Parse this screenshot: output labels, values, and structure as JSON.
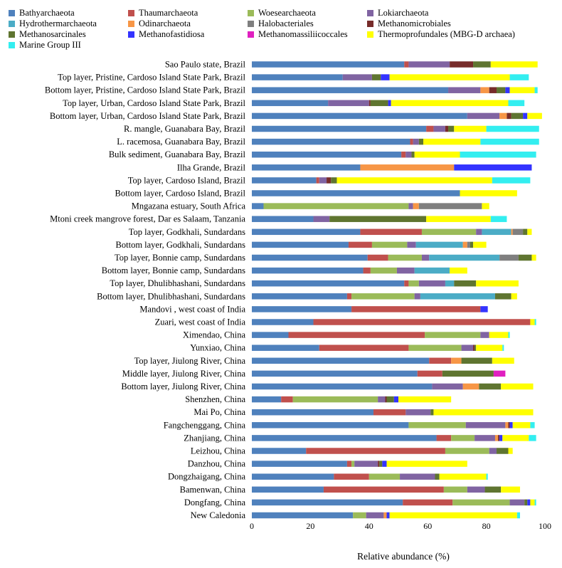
{
  "chart_data": {
    "type": "bar",
    "orientation": "horizontal",
    "stacked": true,
    "xlabel": "Relative abundance (%)",
    "ylabel": "",
    "xlim": [
      0,
      100
    ],
    "xticks": [
      "0",
      "20",
      "40",
      "60",
      "80",
      "100"
    ],
    "grid": false,
    "legend_position": "top",
    "categories": [
      "Sao Paulo state, Brazil",
      "Top layer, Pristine, Cardoso Island State Park, Brazil",
      "Bottom layer, Pristine, Cardoso Island State Park, Brazil",
      "Top layer, Urban, Cardoso Island State Park, Brazil",
      "Bottom layer, Urban, Cardoso Island State Park, Brazil",
      "R. mangle, Guanabara Bay, Brazil",
      "L. racemosa, Guanabara Bay, Brazil",
      "Bulk sediment, Guanabara Bay, Brazil",
      "Ilha Grande, Brazil",
      "Top layer, Cardoso Island, Brazil",
      "Bottom layer, Cardoso Island, Brazil",
      "Mngazana estuary, South Africa",
      "Mtoni creek mangrove forest, Dar es Salaam, Tanzania",
      "Top layer, Godkhali, Sundardans",
      "Bottom layer, Godkhali, Sundardans",
      "Top layer, Bonnie camp, Sundardans",
      "Bottom layer, Bonnie camp, Sundardans",
      "Top layer, Dhulibhashani, Sundardans",
      "Bottom layer, Dhulibhashani, Sundardans",
      "Mandovi , west coast of India",
      "Zuari, west coast of India",
      "Ximendao, China",
      "Yunxiao, China",
      "Top layer, Jiulong River, China",
      "Middle layer, Jiulong River, China",
      "Bottom layer, Jiulong River, China",
      "Shenzhen, China",
      "Mai Po, China",
      "Fangchenggang, China",
      "Zhanjiang, China",
      "Leizhou, China",
      "Danzhou, China",
      "Dongzhaigang, China",
      "Bamenwan, China",
      "Dongfang, China",
      "New Caledonia"
    ],
    "series": [
      {
        "name": "Bathyarchaeota",
        "color": "#4F81BD",
        "values": [
          52,
          31,
          67,
          26,
          73.5,
          59.5,
          54,
          51,
          37,
          22,
          71,
          4,
          21,
          37,
          33,
          39.5,
          38,
          52,
          32.5,
          34,
          21,
          12.5,
          23,
          60.5,
          56.5,
          61.5,
          10,
          41.5,
          53.5,
          63,
          18.5,
          32.5,
          28,
          24.5,
          51.5,
          34.5
        ]
      },
      {
        "name": "Thaumarchaeota",
        "color": "#C0504D",
        "values": [
          1.5,
          0,
          0,
          0,
          0,
          2.5,
          1,
          1.5,
          0,
          1,
          0,
          0,
          0,
          21,
          8,
          7,
          2.5,
          1.5,
          1.5,
          44,
          74,
          46.5,
          30.5,
          7.5,
          8.5,
          0,
          4,
          11,
          0,
          5,
          47.5,
          1.5,
          12,
          41,
          17,
          0
        ]
      },
      {
        "name": "Woesearchaeota",
        "color": "#9BBB59",
        "values": [
          0,
          0,
          0,
          0,
          0,
          0,
          0,
          0,
          0,
          0,
          0,
          49.5,
          0,
          18.5,
          12,
          11.5,
          9,
          3.5,
          21.5,
          0,
          0,
          19,
          18,
          0,
          0,
          0,
          29,
          0,
          19.5,
          8,
          15,
          1,
          10.5,
          8,
          19.5,
          4.5
        ]
      },
      {
        "name": "Lokiarchaeota",
        "color": "#8064A2",
        "values": [
          14,
          10,
          11,
          14,
          11,
          4,
          2,
          2,
          0,
          2.5,
          0,
          1.5,
          5.5,
          2,
          3,
          2.5,
          6,
          9,
          2,
          0,
          0,
          3,
          4,
          0,
          0,
          10.5,
          2.5,
          8.5,
          13.5,
          7,
          2.5,
          8,
          12,
          6,
          5,
          6
        ]
      },
      {
        "name": "Hydrothermarchaeota",
        "color": "#4BACC6",
        "values": [
          0,
          0,
          0,
          0,
          0,
          0,
          0,
          0,
          0,
          0,
          0,
          0,
          0,
          10,
          16,
          24,
          12,
          3,
          25.5,
          0,
          0,
          0,
          0,
          0,
          0,
          0,
          0,
          0,
          0,
          0,
          0,
          0,
          0,
          0,
          0,
          0
        ]
      },
      {
        "name": "Odinarchaeota",
        "color": "#F79646",
        "values": [
          0,
          0,
          3,
          0,
          2.5,
          0,
          0,
          0,
          32,
          0,
          0,
          2,
          0,
          0.5,
          1.5,
          0,
          0,
          0,
          0,
          0,
          0,
          0,
          0,
          3.5,
          0,
          5.5,
          0,
          0,
          1,
          1,
          0,
          0,
          0,
          0,
          0,
          1
        ]
      },
      {
        "name": "Halobacteriales",
        "color": "#7F7F7F",
        "values": [
          0,
          0,
          0,
          0,
          0,
          0,
          0,
          0,
          0,
          0,
          0,
          21.5,
          0,
          3.5,
          1,
          6.5,
          0,
          0,
          0,
          0,
          0,
          0,
          0,
          0,
          0,
          0,
          0,
          0,
          0,
          0,
          0,
          0,
          0,
          0,
          0,
          0
        ]
      },
      {
        "name": "Methanomicrobiales",
        "color": "#772C2A",
        "values": [
          8,
          0,
          2.5,
          0.5,
          1.5,
          1,
          0,
          0,
          0,
          1.5,
          0,
          0,
          0,
          0,
          0,
          0,
          0,
          0,
          0,
          0,
          0,
          0,
          0.5,
          0,
          0,
          0,
          0.5,
          0,
          0.5,
          0.5,
          0,
          0.5,
          0,
          0,
          0,
          0
        ]
      },
      {
        "name": "Methanosarcinales",
        "color": "#5F7530",
        "values": [
          6,
          3,
          3,
          6,
          4,
          2,
          1.5,
          1,
          0,
          2,
          0,
          0,
          33,
          1.5,
          1,
          4.5,
          0,
          7.5,
          5.5,
          0,
          0,
          0,
          0.5,
          10.5,
          17.5,
          7.5,
          2.5,
          1,
          0,
          0,
          4,
          1,
          1.5,
          5.5,
          1,
          0
        ]
      },
      {
        "name": "Methanofastidiosa",
        "color": "#3333FF",
        "values": [
          0,
          3,
          1.5,
          1,
          1.5,
          0,
          0,
          0,
          26.5,
          0,
          0,
          0,
          0,
          0,
          0,
          0,
          0,
          0,
          0,
          2.5,
          0,
          0,
          0,
          0,
          0,
          0,
          1.5,
          0,
          1,
          1,
          0,
          1.5,
          0,
          0,
          1,
          1
        ]
      },
      {
        "name": "Methanomassiliicoccales",
        "color": "#E020C0",
        "values": [
          0,
          0,
          0,
          0,
          0,
          0,
          0,
          0,
          0,
          0,
          0,
          0,
          0,
          0,
          0,
          0,
          0,
          0,
          0,
          0,
          0,
          0,
          0,
          0,
          4,
          0,
          0,
          0,
          0,
          0,
          0,
          0,
          0,
          0,
          0,
          0
        ]
      },
      {
        "name": "Thermoprofundales (MBG-D archaea)",
        "color": "#FFFF00",
        "values": [
          16,
          41,
          8.5,
          40,
          5,
          11,
          19.5,
          15.5,
          0,
          53,
          19.5,
          2.5,
          22,
          1.5,
          4.5,
          1.5,
          6,
          14.5,
          2,
          0,
          1.5,
          6.5,
          9,
          7.5,
          0,
          11,
          18,
          34,
          6,
          9,
          1.5,
          27.5,
          16,
          6.5,
          1.5,
          43.5
        ]
      },
      {
        "name": "Marine Group III",
        "color": "#33EEF0",
        "values": [
          0,
          6.5,
          1,
          5.5,
          0,
          18,
          20,
          26,
          0,
          13,
          0,
          0,
          5.5,
          0,
          0,
          0,
          0,
          0,
          0,
          0,
          0.5,
          0.5,
          0.5,
          0,
          0,
          0,
          0,
          0,
          1.5,
          2.5,
          0,
          0,
          0.5,
          0,
          0.5,
          1
        ]
      }
    ]
  }
}
